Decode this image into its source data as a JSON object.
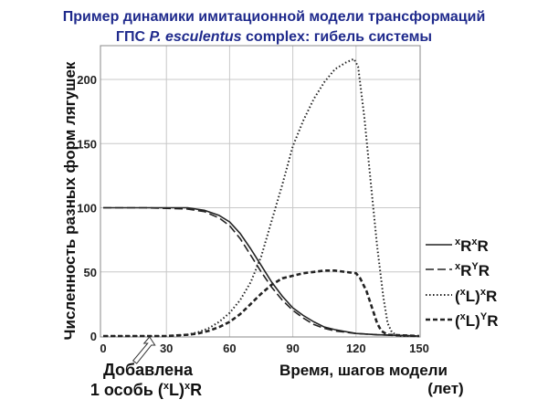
{
  "chart_data": {
    "type": "line",
    "title_line1": "Пример динамики имитационной модели трансформаций",
    "title_line2_pre": "ГПС ",
    "title_line2_italic": "P. esculentus",
    "title_line2_post": " complex: гибель системы",
    "xlabel": "Время, шагов модели",
    "xlabel_unit": "(лет)",
    "ylabel": "Численность разных форм лягушек",
    "xlim": [
      0,
      150
    ],
    "ylim": [
      0,
      220
    ],
    "x_ticks": [
      "0",
      "30",
      "60",
      "90",
      "120",
      "150"
    ],
    "y_ticks": [
      "0",
      "50",
      "100",
      "150",
      "200"
    ],
    "grid": true,
    "legend_position": "right",
    "annotation": {
      "line1": "Добавлена",
      "line2_pre": "1 особь (",
      "line2_sup1": "x",
      "line2_mid": "L)",
      "line2_sup2": "x",
      "line2_post": "R",
      "x": 22
    },
    "series": [
      {
        "label_sup1": "x",
        "label_a": "R",
        "label_sup2": "x",
        "label_b": "R",
        "style": "solid",
        "points": [
          [
            0,
            100
          ],
          [
            20,
            100
          ],
          [
            40,
            100
          ],
          [
            48,
            98
          ],
          [
            55,
            94
          ],
          [
            60,
            89
          ],
          [
            65,
            80
          ],
          [
            70,
            68
          ],
          [
            75,
            55
          ],
          [
            80,
            42
          ],
          [
            85,
            31
          ],
          [
            90,
            22
          ],
          [
            95,
            16
          ],
          [
            100,
            11
          ],
          [
            105,
            7
          ],
          [
            110,
            5
          ],
          [
            120,
            2
          ],
          [
            130,
            1
          ],
          [
            150,
            0
          ]
        ]
      },
      {
        "label_sup1": "x",
        "label_a": "R",
        "label_sup2": "Y",
        "label_b": "R",
        "style": "dash",
        "points": [
          [
            0,
            100
          ],
          [
            20,
            100
          ],
          [
            40,
            99
          ],
          [
            48,
            97
          ],
          [
            55,
            92
          ],
          [
            60,
            86
          ],
          [
            65,
            76
          ],
          [
            70,
            63
          ],
          [
            75,
            50
          ],
          [
            80,
            38
          ],
          [
            85,
            28
          ],
          [
            90,
            20
          ],
          [
            95,
            14
          ],
          [
            100,
            9
          ],
          [
            105,
            6
          ],
          [
            110,
            4
          ],
          [
            120,
            2
          ],
          [
            130,
            1
          ],
          [
            150,
            0
          ]
        ]
      },
      {
        "label_sup1": "x",
        "label_a": "L)",
        "label_sup2": "x",
        "label_b": "R",
        "label_pre": "(",
        "style": "dot",
        "points": [
          [
            0,
            0
          ],
          [
            30,
            0
          ],
          [
            40,
            1
          ],
          [
            45,
            3
          ],
          [
            50,
            6
          ],
          [
            55,
            11
          ],
          [
            60,
            18
          ],
          [
            65,
            28
          ],
          [
            70,
            42
          ],
          [
            75,
            62
          ],
          [
            80,
            90
          ],
          [
            85,
            118
          ],
          [
            90,
            148
          ],
          [
            95,
            168
          ],
          [
            100,
            185
          ],
          [
            105,
            198
          ],
          [
            110,
            208
          ],
          [
            115,
            213
          ],
          [
            119,
            216
          ],
          [
            121,
            210
          ],
          [
            124,
            170
          ],
          [
            127,
            120
          ],
          [
            130,
            70
          ],
          [
            133,
            30
          ],
          [
            135,
            10
          ],
          [
            137,
            3
          ],
          [
            140,
            0
          ],
          [
            150,
            0
          ]
        ]
      },
      {
        "label_sup1": "x",
        "label_a": "L)",
        "label_sup2": "Y",
        "label_b": "R",
        "label_pre": "(",
        "style": "bolddash",
        "points": [
          [
            0,
            0
          ],
          [
            20,
            0
          ],
          [
            30,
            0
          ],
          [
            40,
            1
          ],
          [
            45,
            2
          ],
          [
            50,
            4
          ],
          [
            55,
            7
          ],
          [
            60,
            11
          ],
          [
            65,
            17
          ],
          [
            70,
            25
          ],
          [
            75,
            33
          ],
          [
            80,
            40
          ],
          [
            85,
            45
          ],
          [
            90,
            47
          ],
          [
            95,
            49
          ],
          [
            100,
            50
          ],
          [
            105,
            51
          ],
          [
            110,
            51
          ],
          [
            115,
            50
          ],
          [
            120,
            49
          ],
          [
            122,
            45
          ],
          [
            125,
            35
          ],
          [
            128,
            20
          ],
          [
            130,
            10
          ],
          [
            132,
            4
          ],
          [
            135,
            1
          ],
          [
            150,
            0
          ]
        ]
      }
    ]
  }
}
